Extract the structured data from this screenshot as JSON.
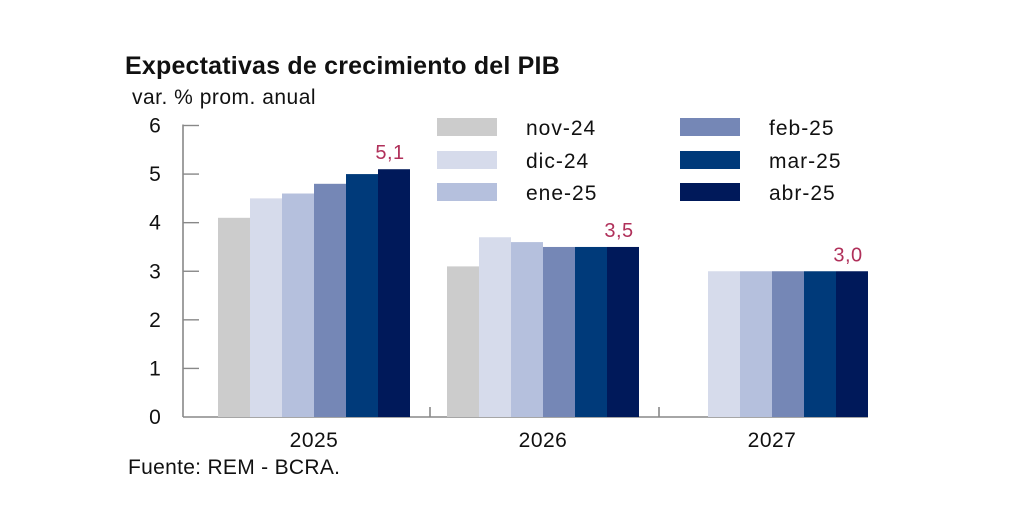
{
  "chart_data": {
    "type": "bar",
    "title": "Expectativas de crecimiento del PIB",
    "subtitle": "var. % prom. anual",
    "xlabel": "",
    "ylabel": "var. % prom. anual",
    "ylim": [
      0,
      6
    ],
    "yticks": [
      "0",
      "1",
      "2",
      "3",
      "4",
      "5",
      "6"
    ],
    "categories": [
      "2025",
      "2026",
      "2027"
    ],
    "series": [
      {
        "name": "nov-24",
        "color": "#cccccc",
        "values": [
          4.1,
          3.1,
          null
        ]
      },
      {
        "name": "dic-24",
        "color": "#d6dbeb",
        "values": [
          4.5,
          3.7,
          3.0
        ]
      },
      {
        "name": "ene-25",
        "color": "#b5c0dd",
        "values": [
          4.6,
          3.6,
          3.0
        ]
      },
      {
        "name": "feb-25",
        "color": "#7587b6",
        "values": [
          4.8,
          3.5,
          3.0
        ]
      },
      {
        "name": "mar-25",
        "color": "#003a7a",
        "values": [
          5.0,
          3.5,
          3.0
        ]
      },
      {
        "name": "abr-25",
        "color": "#00195a",
        "values": [
          5.1,
          3.5,
          3.0
        ]
      }
    ],
    "annotations": [
      "5,1",
      "3,5",
      "3,0"
    ],
    "annotation_color": "#b0305a",
    "legend_position": "top-right",
    "grid": false,
    "source": "Fuente: REM - BCRA."
  }
}
